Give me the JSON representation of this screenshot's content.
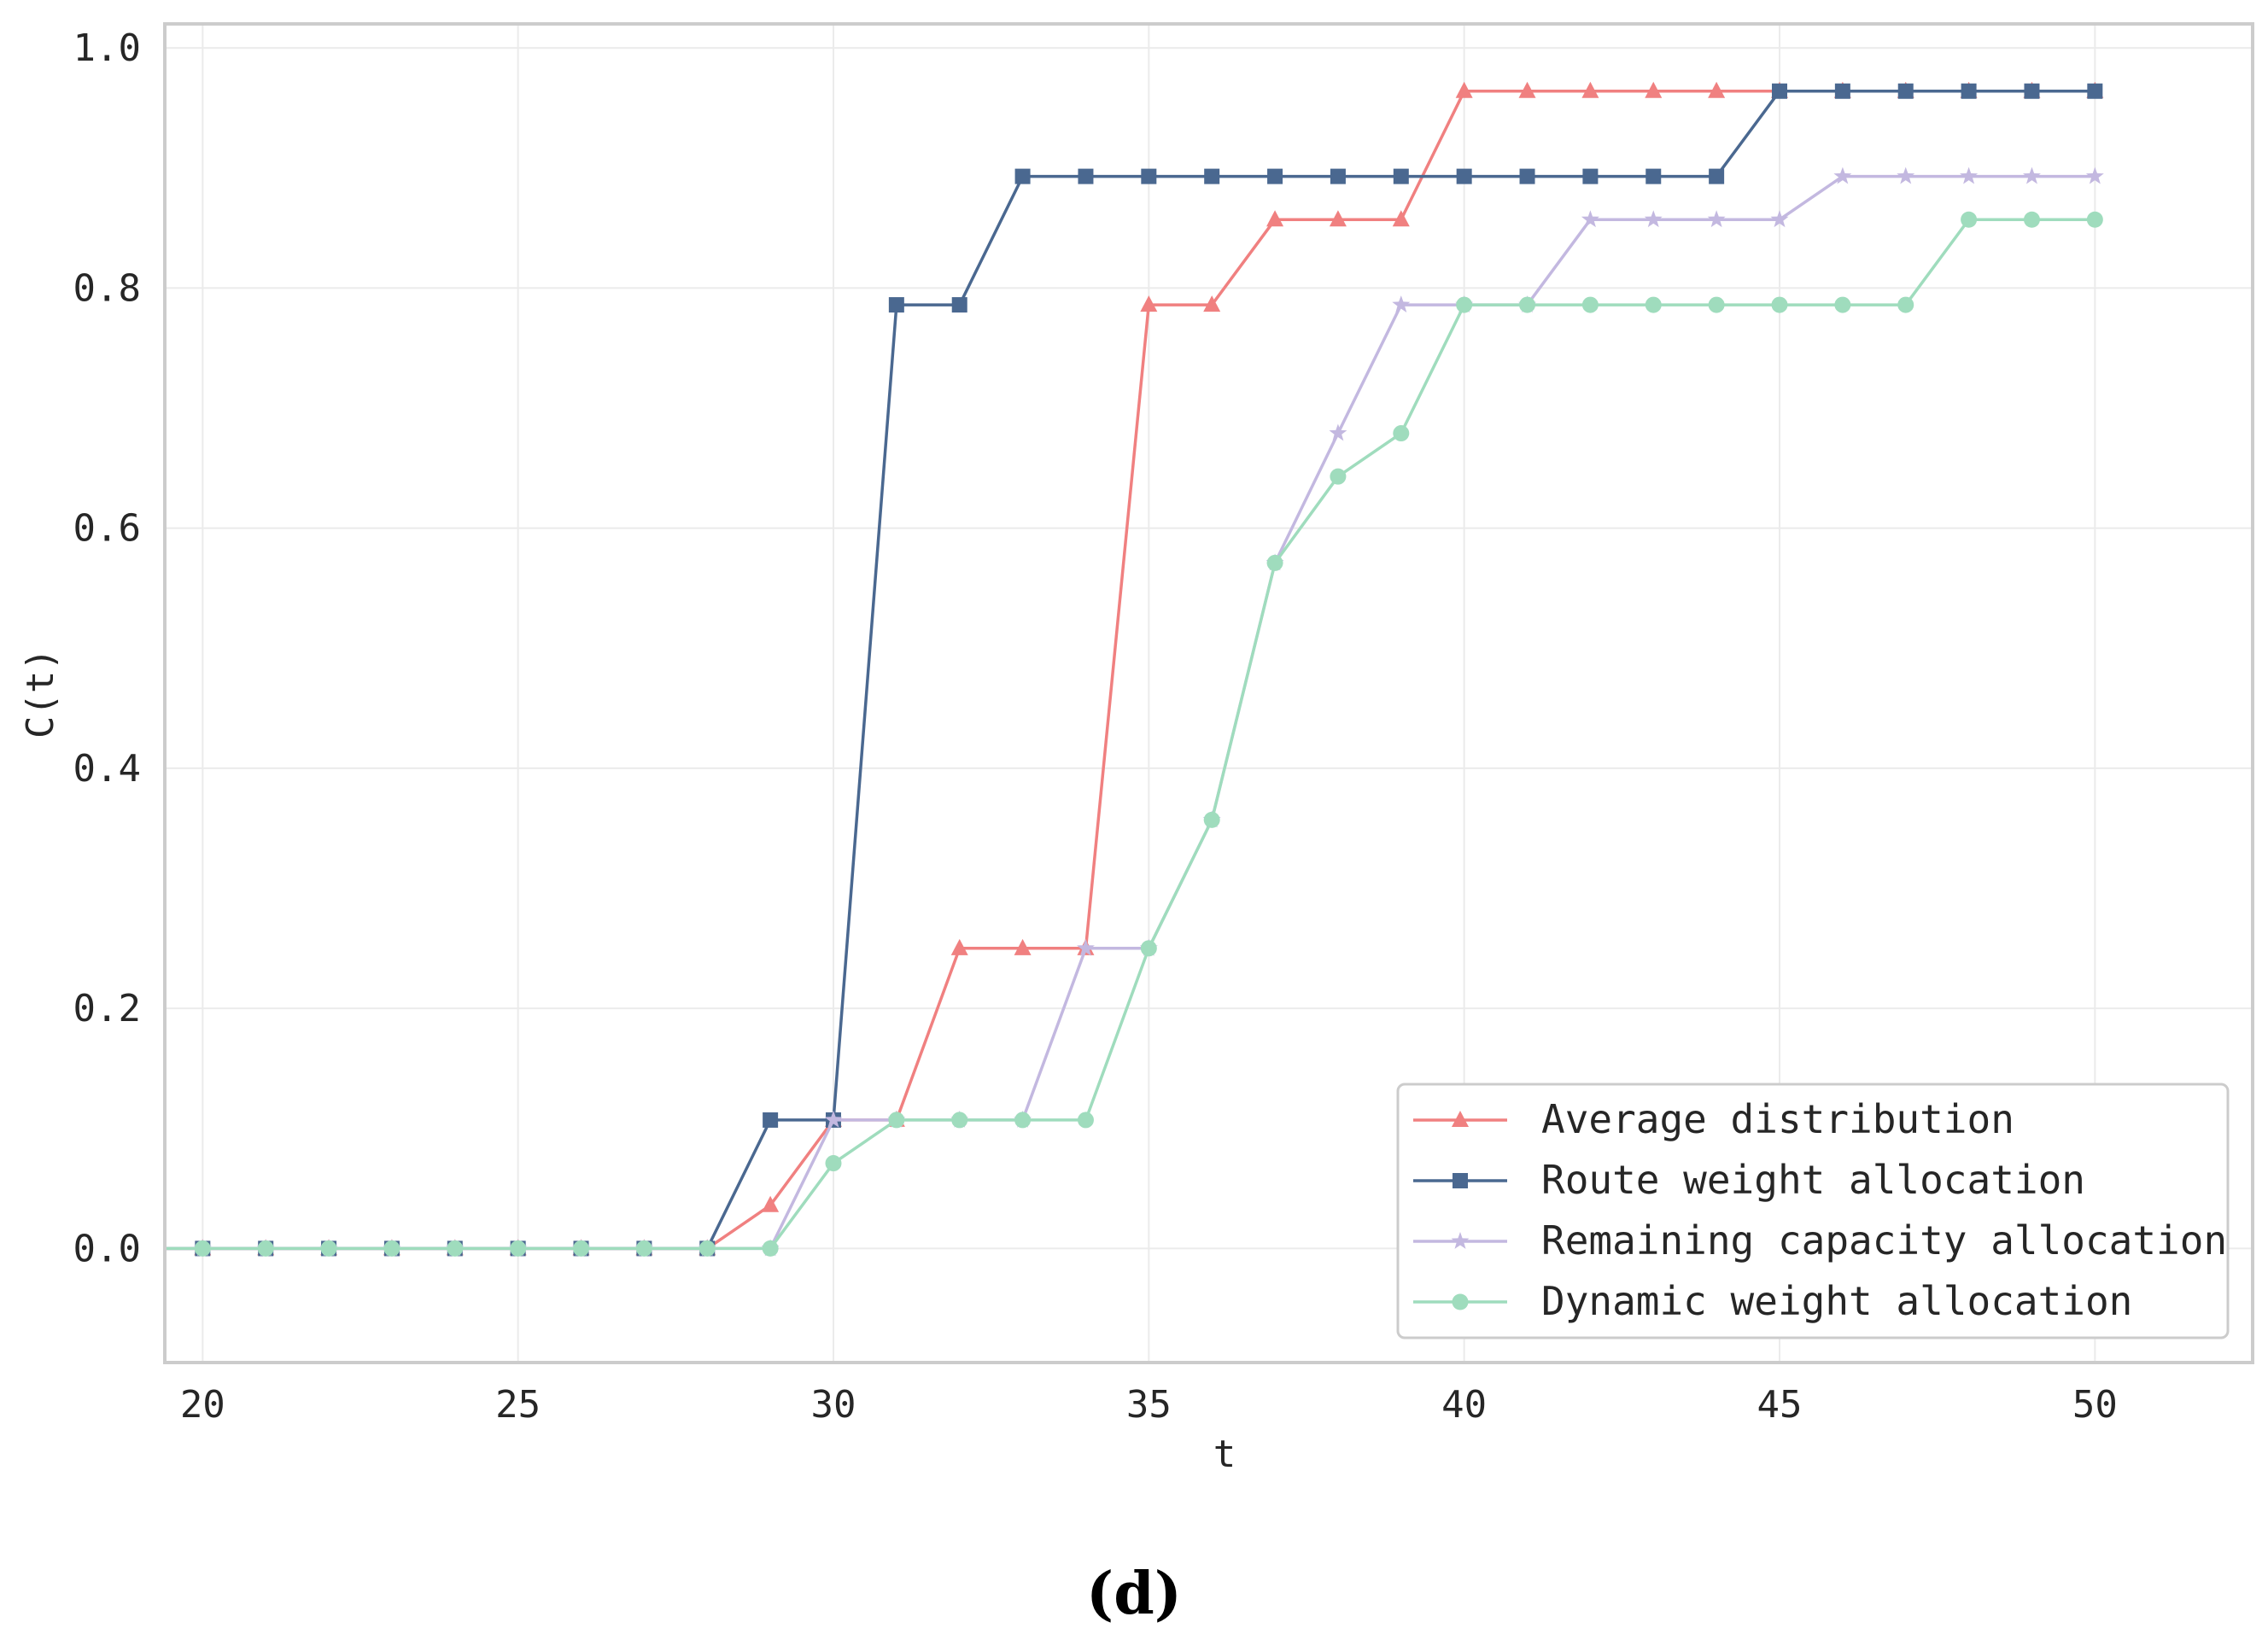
{
  "chart_data": {
    "type": "line",
    "xlabel": "t",
    "ylabel": "C(t)",
    "xlim": [
      19.4,
      52.5
    ],
    "ylim": [
      -0.095,
      1.02
    ],
    "xticks": [
      20,
      25,
      30,
      35,
      40,
      45,
      50
    ],
    "yticks": [
      0.0,
      0.2,
      0.4,
      0.6,
      0.8,
      1.0
    ],
    "ytick_labels": [
      "0.0",
      "0.2",
      "0.4",
      "0.6",
      "0.8",
      "1.0"
    ],
    "grid": true,
    "legend_position": "lower-right",
    "x": [
      20,
      21,
      22,
      23,
      24,
      25,
      26,
      27,
      28,
      29,
      30,
      31,
      32,
      33,
      34,
      35,
      36,
      37,
      38,
      39,
      40,
      41,
      42,
      43,
      44,
      45,
      46,
      47,
      48,
      49,
      50
    ],
    "series": [
      {
        "name": "Average distribution",
        "color": "#f08080",
        "marker": "triangle",
        "values": [
          0,
          0,
          0,
          0,
          0,
          0,
          0,
          0,
          0,
          0.036,
          0.107,
          0.107,
          0.25,
          0.25,
          0.25,
          0.786,
          0.786,
          0.857,
          0.857,
          0.857,
          0.964,
          0.964,
          0.964,
          0.964,
          0.964,
          0.964,
          0.964,
          0.964,
          0.964,
          0.964,
          0.964
        ]
      },
      {
        "name": "Route weight allocation",
        "color": "#4a6890",
        "marker": "square",
        "values": [
          0,
          0,
          0,
          0,
          0,
          0,
          0,
          0,
          0,
          0.107,
          0.107,
          0.786,
          0.786,
          0.893,
          0.893,
          0.893,
          0.893,
          0.893,
          0.893,
          0.893,
          0.893,
          0.893,
          0.893,
          0.893,
          0.893,
          0.964,
          0.964,
          0.964,
          0.964,
          0.964,
          0.964
        ]
      },
      {
        "name": "Remaining capacity allocation",
        "color": "#c3b8e0",
        "marker": "star",
        "values": [
          0,
          0,
          0,
          0,
          0,
          0,
          0,
          0,
          0,
          0,
          0.107,
          0.107,
          0.107,
          0.107,
          0.25,
          0.25,
          0.357,
          0.571,
          0.679,
          0.786,
          0.786,
          0.786,
          0.857,
          0.857,
          0.857,
          0.857,
          0.893,
          0.893,
          0.893,
          0.893,
          0.893
        ]
      },
      {
        "name": "Dynamic weight allocation",
        "color": "#9fdcbd",
        "marker": "circle",
        "values": [
          0,
          0,
          0,
          0,
          0,
          0,
          0,
          0,
          0,
          0,
          0.071,
          0.107,
          0.107,
          0.107,
          0.107,
          0.25,
          0.357,
          0.571,
          0.643,
          0.679,
          0.786,
          0.786,
          0.786,
          0.786,
          0.786,
          0.786,
          0.786,
          0.786,
          0.857,
          0.857,
          0.857
        ]
      }
    ]
  },
  "caption": "(d)"
}
